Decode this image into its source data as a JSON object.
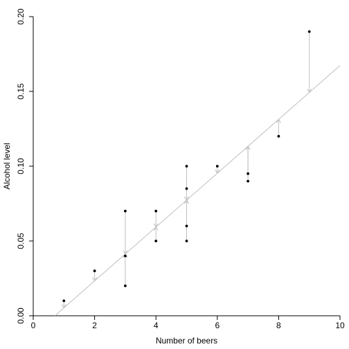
{
  "chart_data": {
    "type": "scatter",
    "title": "",
    "xlabel": "Number of beers",
    "ylabel": "Alcohol level",
    "xlim": [
      0,
      10
    ],
    "ylim": [
      0,
      0.2
    ],
    "x_ticks": [
      0,
      2,
      4,
      6,
      8,
      10
    ],
    "y_ticks": [
      0,
      0.05,
      0.1,
      0.15,
      0.2
    ],
    "x_tick_labels": [
      "0",
      "2",
      "4",
      "6",
      "8",
      "10"
    ],
    "y_tick_labels": [
      "0.00",
      "0.05",
      "0.10",
      "0.15",
      "0.20"
    ],
    "points": [
      {
        "x": 1,
        "y": 0.01
      },
      {
        "x": 2,
        "y": 0.03
      },
      {
        "x": 3,
        "y": 0.07
      },
      {
        "x": 3,
        "y": 0.04
      },
      {
        "x": 3,
        "y": 0.02
      },
      {
        "x": 4,
        "y": 0.07
      },
      {
        "x": 4,
        "y": 0.05
      },
      {
        "x": 5,
        "y": 0.1
      },
      {
        "x": 5,
        "y": 0.085
      },
      {
        "x": 5,
        "y": 0.06
      },
      {
        "x": 5,
        "y": 0.05
      },
      {
        "x": 6,
        "y": 0.1
      },
      {
        "x": 7,
        "y": 0.095
      },
      {
        "x": 7,
        "y": 0.09
      },
      {
        "x": 8,
        "y": 0.12
      },
      {
        "x": 9,
        "y": 0.19
      }
    ],
    "fit_line": {
      "intercept": -0.0127,
      "slope": 0.018
    },
    "residual_arrows": true,
    "grid": false,
    "colors": {
      "points": "#000000",
      "fit": "#bfbfbf",
      "residuals": "#bfbfbf"
    }
  }
}
